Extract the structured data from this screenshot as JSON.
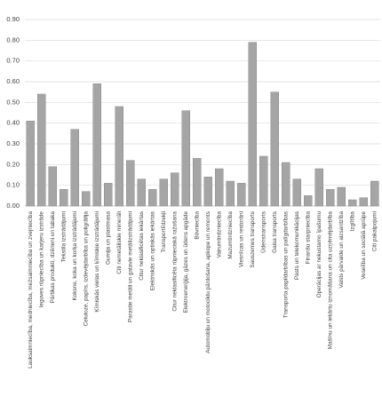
{
  "chart_data": {
    "type": "bar",
    "categories": [
      "Lauksaimniecība, medniecība, mežsaimniecība un zvejniecība",
      "Ieguves rūpniecība un karjeru izstrāde",
      "Pārtikas produkti, dzērieni un tabaka",
      "Tekstila izstrādājumi",
      "Koksne, koka un korķa izstrādājumi",
      "Celuloze, papīrs, izdevējdarbība un poligrāfija",
      "Ķīmiskās vielas un ķīmiskie izstrādājumi",
      "Gumija un plastmasa",
      "Citi nemetāliskie minerāli",
      "Parastie metāli un gatavie metālizstrādājumi",
      "Citur neklasificētas iekārtas",
      "Elektriskās un optiskās iekārtas",
      "Transportlīdzekļi",
      "Citur neklasificēta rūpnieciskā ražošana",
      "Elektroenerģija, gāzes un ūdens apgāde",
      "Būvniecība",
      "Automobiļu un motociklu pārdošana, apkope un remonts",
      "Vairumtirdzniecība",
      "Mazumtirdzniecība",
      "Viesnīcas un restorāni",
      "Sauszemes transports",
      "Ūdenstransports",
      "Gaisa transports",
      "Transporta papildarbības un palīgdarbības",
      "Pasts un telekomunikācijas",
      "Finanšu starpniecība",
      "Operācijas ar nekustamo īpašumu",
      "Mašīnu un iekārtu iznomāšana un cita uzņēmējdarbība",
      "Valsts pārvalde un aizsardzība",
      "Izglītība",
      "Veselība un sociālā aprūpe",
      "Citi pakalpojumi"
    ],
    "values": [
      0.41,
      0.54,
      0.19,
      0.08,
      0.37,
      0.07,
      0.59,
      0.11,
      0.48,
      0.22,
      0.13,
      0.08,
      0.13,
      0.16,
      0.46,
      0.23,
      0.14,
      0.18,
      0.12,
      0.11,
      0.79,
      0.24,
      0.55,
      0.21,
      0.13,
      0.05,
      0.18,
      0.08,
      0.09,
      0.03,
      0.04,
      0.12
    ],
    "color": "#a5a5a5",
    "ylim": [
      0,
      0.9
    ],
    "yticks": [
      {
        "value": 0,
        "label": "0.00"
      },
      {
        "value": 0.1,
        "label": "0.10"
      },
      {
        "value": 0.2,
        "label": "0.20"
      },
      {
        "value": 0.3,
        "label": "0.30"
      },
      {
        "value": 0.4,
        "label": "0.40"
      },
      {
        "value": 0.5,
        "label": "0.50"
      },
      {
        "value": 0.6,
        "label": "0.60"
      },
      {
        "value": 0.7,
        "label": "0.70"
      },
      {
        "value": 0.8,
        "label": "0.80"
      },
      {
        "value": 0.9,
        "label": "0.90"
      }
    ],
    "grid": true
  }
}
